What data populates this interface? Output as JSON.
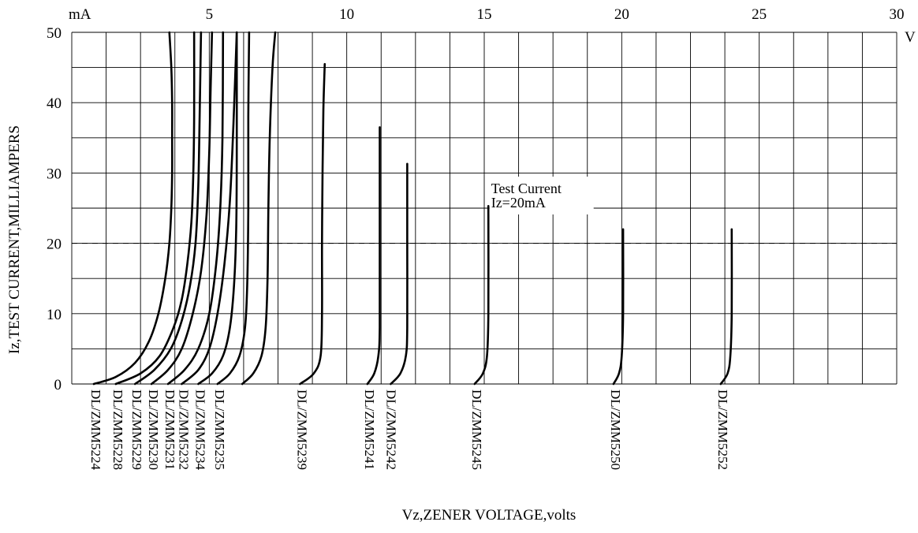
{
  "chart_data": {
    "type": "line",
    "xlabel": "Vz,ZENER VOLTAGE,volts",
    "ylabel": "Iz,TEST CURRENT,MILLIAMPERS",
    "x_unit": "V",
    "y_unit": "mA",
    "xlim": [
      0,
      30
    ],
    "ylim": [
      0,
      50
    ],
    "x_ticks": [
      {
        "value": 5,
        "label": "5"
      },
      {
        "value": 10,
        "label": "10"
      },
      {
        "value": 15,
        "label": "15"
      },
      {
        "value": 20,
        "label": "20"
      },
      {
        "value": 25,
        "label": "25"
      },
      {
        "value": 30,
        "label": "30"
      }
    ],
    "y_ticks": [
      {
        "value": 0,
        "label": "0"
      },
      {
        "value": 10,
        "label": "10"
      },
      {
        "value": 20,
        "label": "20"
      },
      {
        "value": 30,
        "label": "30"
      },
      {
        "value": 40,
        "label": "40"
      },
      {
        "value": 50,
        "label": "50"
      }
    ],
    "grid": true,
    "x_grid_step": 1.25,
    "y_grid_step": 5,
    "reference_line": {
      "y": 20,
      "style": "dashed"
    },
    "annotation": {
      "lines": [
        "Test Current",
        "Iz=20mA"
      ],
      "x": 15.25,
      "y": 25
    },
    "series": [
      {
        "name": "DL/ZMM5224",
        "points": [
          [
            0.8,
            0
          ],
          [
            1.6,
            1
          ],
          [
            2.3,
            3
          ],
          [
            2.8,
            6
          ],
          [
            3.15,
            10
          ],
          [
            3.4,
            15
          ],
          [
            3.55,
            20
          ],
          [
            3.62,
            25
          ],
          [
            3.65,
            30
          ],
          [
            3.65,
            35
          ],
          [
            3.65,
            40
          ],
          [
            3.62,
            45
          ],
          [
            3.55,
            50
          ]
        ]
      },
      {
        "name": "DL/ZMM5228",
        "points": [
          [
            1.6,
            0
          ],
          [
            2.5,
            1.5
          ],
          [
            3.2,
            4
          ],
          [
            3.7,
            8
          ],
          [
            4.0,
            12
          ],
          [
            4.2,
            17
          ],
          [
            4.35,
            23
          ],
          [
            4.42,
            30
          ],
          [
            4.45,
            38
          ],
          [
            4.45,
            50
          ]
        ]
      },
      {
        "name": "DL/ZMM5229",
        "points": [
          [
            2.3,
            0
          ],
          [
            3.0,
            2
          ],
          [
            3.6,
            5
          ],
          [
            4.0,
            9
          ],
          [
            4.3,
            14
          ],
          [
            4.5,
            20
          ],
          [
            4.6,
            28
          ],
          [
            4.65,
            38
          ],
          [
            4.7,
            50
          ]
        ]
      },
      {
        "name": "DL/ZMM5230",
        "points": [
          [
            2.9,
            0
          ],
          [
            3.5,
            2
          ],
          [
            4.0,
            5
          ],
          [
            4.4,
            10
          ],
          [
            4.7,
            16
          ],
          [
            4.9,
            24
          ],
          [
            5.0,
            33
          ],
          [
            5.05,
            42
          ],
          [
            5.1,
            50
          ]
        ]
      },
      {
        "name": "DL/ZMM5231",
        "points": [
          [
            3.5,
            0
          ],
          [
            4.1,
            2
          ],
          [
            4.6,
            5
          ],
          [
            5.0,
            10
          ],
          [
            5.25,
            17
          ],
          [
            5.4,
            25
          ],
          [
            5.48,
            35
          ],
          [
            5.5,
            50
          ]
        ]
      },
      {
        "name": "DL/ZMM5232",
        "points": [
          [
            4.0,
            0
          ],
          [
            4.6,
            2
          ],
          [
            5.0,
            5
          ],
          [
            5.3,
            10
          ],
          [
            5.55,
            17
          ],
          [
            5.75,
            26
          ],
          [
            5.88,
            37
          ],
          [
            6.0,
            50
          ]
        ]
      },
      {
        "name": "DL/ZMM5234",
        "points": [
          [
            4.6,
            0
          ],
          [
            5.1,
            1.5
          ],
          [
            5.5,
            4
          ],
          [
            5.75,
            8
          ],
          [
            5.9,
            14
          ],
          [
            5.98,
            22
          ],
          [
            6.0,
            32
          ],
          [
            6.0,
            50
          ]
        ]
      },
      {
        "name": "DL/ZMM5235",
        "points": [
          [
            5.3,
            0
          ],
          [
            5.75,
            1.5
          ],
          [
            6.1,
            4
          ],
          [
            6.3,
            8
          ],
          [
            6.38,
            14
          ],
          [
            6.42,
            25
          ],
          [
            6.42,
            38
          ],
          [
            6.45,
            50
          ]
        ]
      },
      {
        "name": "DL/ZMM5239",
        "points": [
          [
            6.2,
            0
          ],
          [
            6.6,
            1.5
          ],
          [
            6.9,
            4
          ],
          [
            7.05,
            8
          ],
          [
            7.12,
            15
          ],
          [
            7.15,
            25
          ],
          [
            7.2,
            35
          ],
          [
            7.3,
            45
          ],
          [
            7.4,
            50
          ]
        ]
      },
      {
        "name": "DL/ZMM5241",
        "points": [
          [
            8.3,
            0
          ],
          [
            8.8,
            1.5
          ],
          [
            9.05,
            4
          ],
          [
            9.1,
            10
          ],
          [
            9.1,
            20
          ],
          [
            9.12,
            30
          ],
          [
            9.15,
            39
          ],
          [
            9.2,
            45.5
          ]
        ]
      },
      {
        "name": "DL/ZMM5242",
        "points": [
          [
            10.75,
            0
          ],
          [
            11.0,
            1.5
          ],
          [
            11.15,
            4
          ],
          [
            11.2,
            8
          ],
          [
            11.2,
            20
          ],
          [
            11.2,
            36.5
          ]
        ]
      },
      {
        "name": "DL/ZMM5245",
        "points": [
          [
            11.6,
            0
          ],
          [
            11.95,
            1.5
          ],
          [
            12.15,
            4
          ],
          [
            12.2,
            8
          ],
          [
            12.2,
            20
          ],
          [
            12.2,
            31.3
          ]
        ]
      },
      {
        "name": "DL/ZMM5250",
        "points": [
          [
            14.65,
            0
          ],
          [
            14.95,
            1.5
          ],
          [
            15.1,
            4
          ],
          [
            15.15,
            10
          ],
          [
            15.15,
            25.3
          ]
        ]
      },
      {
        "name": "DL/ZMM5252",
        "points": [
          [
            19.7,
            0
          ],
          [
            19.9,
            1.5
          ],
          [
            20.0,
            4
          ],
          [
            20.05,
            10
          ],
          [
            20.05,
            22
          ]
        ]
      },
      {
        "name": "",
        "points": [
          [
            23.6,
            0
          ],
          [
            23.85,
            1.5
          ],
          [
            23.95,
            4
          ],
          [
            24.0,
            10
          ],
          [
            24.0,
            22
          ]
        ]
      }
    ],
    "series_labels": [
      {
        "text": "DL/ZMM5224",
        "x": 0.8
      },
      {
        "text": "DL/ZMM5228",
        "x": 1.6
      },
      {
        "text": "DL/ZMM5229",
        "x": 2.3
      },
      {
        "text": "DL/ZMM5230",
        "x": 2.9
      },
      {
        "text": "DL/ZMM5231",
        "x": 3.5
      },
      {
        "text": "DL/ZMM5232",
        "x": 4.0
      },
      {
        "text": "DL/ZMM5234",
        "x": 4.6
      },
      {
        "text": "DL/ZMM5235",
        "x": 5.3
      },
      {
        "text": "DL/ZMM5239",
        "x": 8.3
      },
      {
        "text": "DL/ZMM5241",
        "x": 10.75
      },
      {
        "text": "DL/ZMM5242",
        "x": 11.55
      },
      {
        "text": "DL/ZMM5245",
        "x": 14.65
      },
      {
        "text": "DL/ZMM5250",
        "x": 19.7
      },
      {
        "text": "DL/ZMM5252",
        "x": 23.6
      }
    ]
  }
}
